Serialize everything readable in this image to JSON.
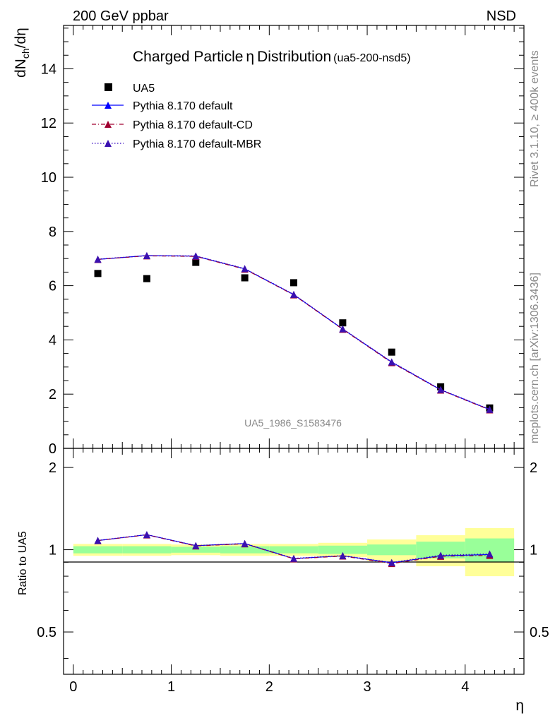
{
  "header": {
    "left": "200 GeV ppbar",
    "right": "NSD"
  },
  "side_labels": {
    "rivet": "Rivet 3.1.10, ≥ 400k events",
    "mcplots": "mcplots.cern.ch [arXiv:1306.3436]"
  },
  "colors": {
    "data_marker": "#000000",
    "default": "#0000ff",
    "cd": "#a00030",
    "mbr": "#3000c0",
    "marker_fill": "#3a10b0",
    "band_inner": "#99ff99",
    "band_outer": "#ffff99",
    "watermark": "#999999"
  },
  "chart_data": [
    {
      "id": "main",
      "type": "scatter+line",
      "title": "Charged Particle",
      "title_symbol": "η",
      "title_tail": "Distribution",
      "title_tag": "(ua5-200-nsd5)",
      "ylabel_main": "dN",
      "ylabel_sub": "ch",
      "ylabel_tail": "/dη",
      "watermark": "UA5_1986_S1583476",
      "xlim": [
        -0.1,
        4.6
      ],
      "ylim": [
        0,
        15.6
      ],
      "yticks": [
        0,
        2,
        4,
        6,
        8,
        10,
        12,
        14
      ],
      "ytick_labels": [
        "0",
        "2",
        "4",
        "6",
        "8",
        "10",
        "12",
        "14"
      ],
      "x": [
        0.25,
        0.75,
        1.25,
        1.75,
        2.25,
        2.75,
        3.25,
        3.75,
        4.25
      ],
      "series": [
        {
          "name": "UA5",
          "style": "square",
          "values": [
            6.45,
            6.26,
            6.86,
            6.29,
            6.11,
            4.63,
            3.55,
            2.27,
            1.49
          ]
        },
        {
          "name": "Pythia 8.170 default",
          "style": "solid",
          "values": [
            6.97,
            7.11,
            7.09,
            6.62,
            5.67,
            4.4,
            3.18,
            2.16,
            1.43
          ]
        },
        {
          "name": "Pythia 8.170 default-CD",
          "style": "dashdot",
          "values": [
            6.97,
            7.1,
            7.08,
            6.61,
            5.66,
            4.39,
            3.16,
            2.15,
            1.42
          ]
        },
        {
          "name": "Pythia 8.170 default-MBR",
          "style": "dotted",
          "values": [
            6.98,
            7.11,
            7.1,
            6.63,
            5.68,
            4.41,
            3.19,
            2.17,
            1.44
          ]
        }
      ]
    },
    {
      "id": "ratio",
      "type": "line+band",
      "ylabel": "Ratio to UA5",
      "xlabel": "η",
      "xlim": [
        -0.1,
        4.6
      ],
      "ylim": [
        0.35,
        2.35
      ],
      "yticks": [
        0.5,
        1,
        2
      ],
      "ytick_labels": [
        "0.5",
        "1",
        "2"
      ],
      "xticks": [
        0,
        1,
        2,
        3,
        4
      ],
      "xtick_labels": [
        "0",
        "1",
        "2",
        "3",
        "4"
      ],
      "bins": [
        [
          0,
          0.5
        ],
        [
          0.5,
          1
        ],
        [
          1,
          1.5
        ],
        [
          1.5,
          2
        ],
        [
          2,
          2.5
        ],
        [
          2.5,
          3
        ],
        [
          3,
          3.5
        ],
        [
          3.5,
          4
        ],
        [
          4,
          4.5
        ]
      ],
      "band_inner": [
        [
          0.97,
          1.03
        ],
        [
          0.97,
          1.03
        ],
        [
          0.975,
          1.025
        ],
        [
          0.97,
          1.03
        ],
        [
          0.97,
          1.03
        ],
        [
          0.965,
          1.035
        ],
        [
          0.955,
          1.045
        ],
        [
          0.93,
          1.07
        ],
        [
          0.9,
          1.1
        ]
      ],
      "band_outer": [
        [
          0.95,
          1.05
        ],
        [
          0.95,
          1.05
        ],
        [
          0.955,
          1.045
        ],
        [
          0.95,
          1.05
        ],
        [
          0.95,
          1.05
        ],
        [
          0.94,
          1.06
        ],
        [
          0.91,
          1.09
        ],
        [
          0.87,
          1.13
        ],
        [
          0.8,
          1.2
        ]
      ],
      "x": [
        0.25,
        0.75,
        1.25,
        1.75,
        2.25,
        2.75,
        3.25,
        3.75,
        4.25
      ],
      "series": [
        {
          "name": "Pythia 8.170 default",
          "style": "solid",
          "values": [
            1.08,
            1.135,
            1.035,
            1.053,
            0.928,
            0.95,
            0.896,
            0.95,
            0.96
          ]
        },
        {
          "name": "Pythia 8.170 default-CD",
          "style": "dashdot",
          "values": [
            1.08,
            1.133,
            1.032,
            1.051,
            0.926,
            0.948,
            0.89,
            0.946,
            0.953
          ]
        },
        {
          "name": "Pythia 8.170 default-MBR",
          "style": "dotted",
          "values": [
            1.082,
            1.136,
            1.036,
            1.054,
            0.93,
            0.952,
            0.898,
            0.955,
            0.966
          ]
        }
      ]
    }
  ]
}
